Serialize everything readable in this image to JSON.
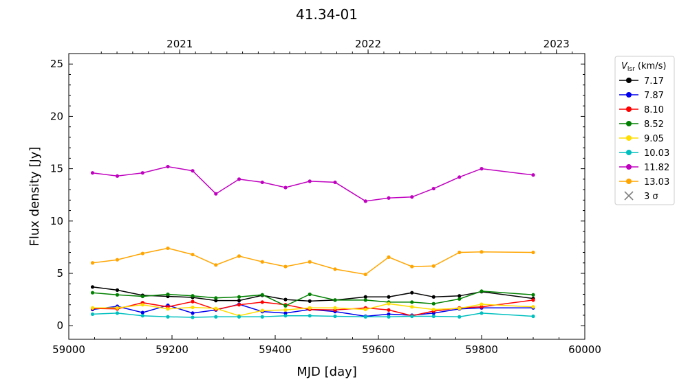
{
  "chart_data": {
    "type": "line",
    "title": "41.34-01",
    "xlabel": "MJD [day]",
    "ylabel": "Flux density [Jy]",
    "xlim": [
      59000,
      60000
    ],
    "ylim": [
      -1.3,
      26
    ],
    "xticks": [
      59000,
      59200,
      59400,
      59600,
      59800,
      60000
    ],
    "yticks": [
      0,
      5,
      10,
      15,
      20,
      25
    ],
    "top_axis": {
      "ticks": [
        {
          "label": "2021",
          "mjd": 59215
        },
        {
          "label": "2022",
          "mjd": 59580
        },
        {
          "label": "2023",
          "mjd": 59945
        }
      ]
    },
    "legend": {
      "placement": "outside-right-top",
      "title_main": "V",
      "title_sub": "lsr",
      "title_unit": " (km/s)",
      "sigma_label": "3 σ",
      "sigma_color": "#808080"
    },
    "x": [
      59046,
      59094,
      59143,
      59192,
      59240,
      59285,
      59330,
      59375,
      59420,
      59467,
      59516,
      59575,
      59620,
      59665,
      59707,
      59757,
      59800,
      59900
    ],
    "series": [
      {
        "name": "7.17",
        "color": "#000000",
        "values": [
          3.7,
          3.4,
          2.9,
          2.8,
          2.7,
          2.4,
          2.4,
          2.9,
          2.5,
          2.35,
          2.45,
          2.75,
          2.75,
          3.15,
          2.75,
          2.85,
          3.25,
          2.6
        ]
      },
      {
        "name": "7.87",
        "color": "#0000ee",
        "values": [
          1.55,
          1.85,
          1.25,
          1.95,
          1.2,
          1.5,
          2.05,
          1.35,
          1.2,
          1.55,
          1.35,
          0.9,
          1.1,
          1.0,
          1.2,
          1.6,
          1.7,
          1.7
        ]
      },
      {
        "name": "8.10",
        "color": "#ff0000",
        "values": [
          1.65,
          1.6,
          2.2,
          1.8,
          2.3,
          1.55,
          2.0,
          2.25,
          2.0,
          1.55,
          1.5,
          1.7,
          1.5,
          0.95,
          1.4,
          1.7,
          1.8,
          2.45
        ]
      },
      {
        "name": "8.52",
        "color": "#008000",
        "values": [
          3.15,
          2.95,
          2.8,
          3.0,
          2.85,
          2.65,
          2.75,
          2.95,
          1.9,
          3.0,
          2.45,
          2.45,
          2.25,
          2.25,
          2.1,
          2.55,
          3.3,
          2.95
        ]
      },
      {
        "name": "9.05",
        "color": "#ffdd00",
        "values": [
          1.7,
          1.7,
          2.0,
          1.6,
          1.75,
          1.65,
          0.95,
          1.45,
          1.5,
          1.7,
          1.7,
          1.55,
          2.1,
          1.8,
          1.55,
          1.65,
          2.05,
          1.8
        ]
      },
      {
        "name": "10.03",
        "color": "#00bfbf",
        "values": [
          1.1,
          1.2,
          0.95,
          0.85,
          0.8,
          0.85,
          0.85,
          0.85,
          0.95,
          0.95,
          0.9,
          0.85,
          0.85,
          0.9,
          0.9,
          0.85,
          1.2,
          0.9
        ]
      },
      {
        "name": "11.82",
        "color": "#bf00bf",
        "values": [
          14.6,
          14.3,
          14.6,
          15.2,
          14.8,
          12.6,
          14.0,
          13.7,
          13.2,
          13.8,
          13.7,
          11.9,
          12.2,
          12.3,
          13.1,
          14.2,
          15.0,
          14.4
        ]
      },
      {
        "name": "13.03",
        "color": "#ffa500",
        "values": [
          6.0,
          6.3,
          6.9,
          7.4,
          6.8,
          5.8,
          6.65,
          6.1,
          5.65,
          6.1,
          5.4,
          4.9,
          6.55,
          5.65,
          5.7,
          7.0,
          7.05,
          7.0
        ]
      }
    ]
  }
}
